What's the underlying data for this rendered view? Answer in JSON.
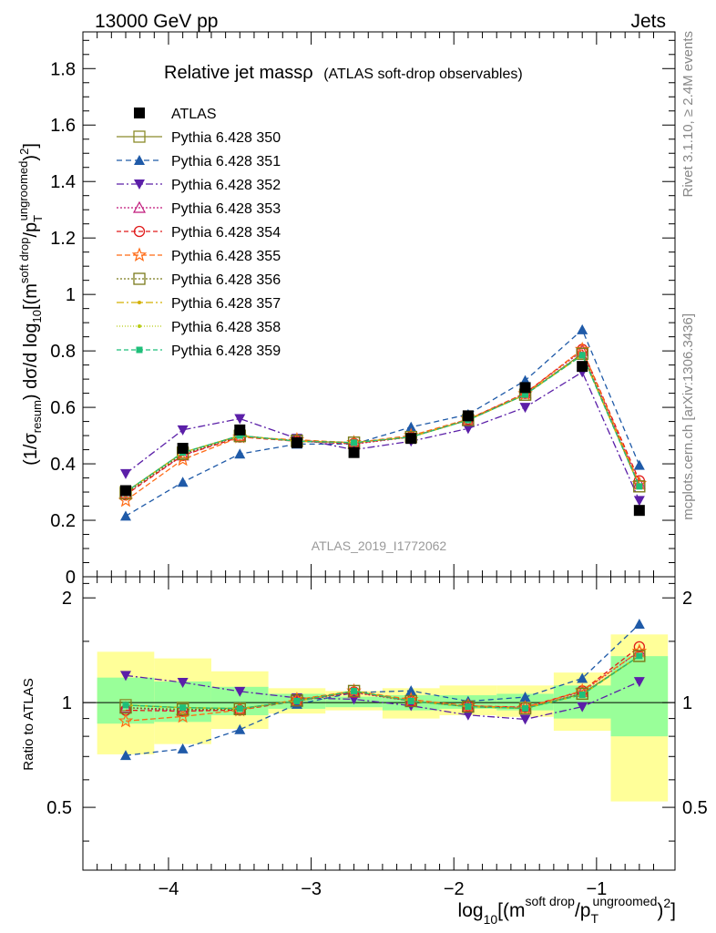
{
  "header": {
    "left": "13000 GeV pp",
    "right": "Jets",
    "analysis": "ATLAS_2019_I1772062",
    "side_top": "Rivet 3.1.10, ≥ 2.4M events",
    "side_bottom": "mcplots.cern.ch [arXiv:1306.3436]"
  },
  "chart_data": {
    "type": "line",
    "title": "Relative jet massρ",
    "subtitle": "(ATLAS soft-drop observables)",
    "xlabel": "log10[(m^{soft drop}/p_T^{ungroomed})^2]",
    "ylabel_main": "(1/σ_resum) dσ/d log10[(m^{soft drop}/p_T^{ungroomed})^2]",
    "ylabel_ratio": "Ratio to ATLAS",
    "xlim": [
      -4.6,
      -0.45
    ],
    "ylim": [
      0,
      1.93
    ],
    "ratio_ylim": [
      0.33,
      2.3
    ],
    "ratio_yscale": "log",
    "grid": false,
    "legend_position": "top-left",
    "x_ticks": [
      "−4",
      "−3",
      "−2",
      "−1"
    ],
    "x_tick_values": [
      -4,
      -3,
      -2,
      -1
    ],
    "y_ticks": [
      "0",
      "0.2",
      "0.4",
      "0.6",
      "0.8",
      "1",
      "1.2",
      "1.4",
      "1.6",
      "1.8"
    ],
    "y_tick_values": [
      0,
      0.2,
      0.4,
      0.6,
      0.8,
      1,
      1.2,
      1.4,
      1.6,
      1.8
    ],
    "ratio_ticks": [
      "0.5",
      "1",
      "2"
    ],
    "ratio_tick_values": [
      0.5,
      1,
      2
    ],
    "x": [
      -4.3,
      -3.9,
      -3.5,
      -3.1,
      -2.7,
      -2.3,
      -1.9,
      -1.5,
      -1.1,
      -0.7
    ],
    "bin_edges": [
      -4.5,
      -4.1,
      -3.7,
      -3.3,
      -2.9,
      -2.5,
      -2.1,
      -1.7,
      -1.3,
      -0.9,
      -0.5
    ],
    "data": {
      "name": "ATLAS",
      "values": [
        0.305,
        0.455,
        0.52,
        0.475,
        0.44,
        0.49,
        0.57,
        0.67,
        0.745,
        0.235
      ]
    },
    "band_outer": [
      [
        0.71,
        1.4
      ],
      [
        0.76,
        1.34
      ],
      [
        0.84,
        1.23
      ],
      [
        0.93,
        1.1
      ],
      [
        0.95,
        1.08
      ],
      [
        0.9,
        1.1
      ],
      [
        0.92,
        1.12
      ],
      [
        0.91,
        1.12
      ],
      [
        0.83,
        1.22
      ],
      [
        0.52,
        1.57
      ]
    ],
    "band_inner": [
      [
        0.87,
        1.18
      ],
      [
        0.88,
        1.15
      ],
      [
        0.92,
        1.11
      ],
      [
        0.96,
        1.06
      ],
      [
        0.97,
        1.04
      ],
      [
        0.95,
        1.05
      ],
      [
        0.96,
        1.05
      ],
      [
        0.95,
        1.06
      ],
      [
        0.9,
        1.12
      ],
      [
        0.8,
        1.36
      ]
    ],
    "series": [
      {
        "name": "Pythia 6.428 350",
        "color": "#8b8b2a",
        "marker": "square-open",
        "dash": "",
        "values": [
          0.3,
          0.44,
          0.5,
          0.48,
          0.475,
          0.495,
          0.555,
          0.645,
          0.79,
          0.32
        ]
      },
      {
        "name": "Pythia 6.428 351",
        "color": "#1f5aa8",
        "marker": "triangle-up",
        "dash": "6,4",
        "values": [
          0.215,
          0.335,
          0.435,
          0.47,
          0.47,
          0.53,
          0.575,
          0.695,
          0.875,
          0.395
        ]
      },
      {
        "name": "Pythia 6.428 352",
        "color": "#5b1fa8",
        "marker": "triangle-down",
        "dash": "8,3,2,3",
        "values": [
          0.365,
          0.52,
          0.56,
          0.49,
          0.45,
          0.48,
          0.525,
          0.6,
          0.725,
          0.27
        ]
      },
      {
        "name": "Pythia 6.428 353",
        "color": "#c0187a",
        "marker": "triangle-open",
        "dash": "2,2",
        "values": [
          0.295,
          0.43,
          0.5,
          0.48,
          0.47,
          0.495,
          0.555,
          0.65,
          0.8,
          0.33
        ]
      },
      {
        "name": "Pythia 6.428 354",
        "color": "#e01a1a",
        "marker": "circle-open",
        "dash": "5,3",
        "values": [
          0.29,
          0.43,
          0.495,
          0.48,
          0.472,
          0.495,
          0.558,
          0.65,
          0.805,
          0.34
        ]
      },
      {
        "name": "Pythia 6.428 355",
        "color": "#ff6a14",
        "marker": "star-open",
        "dash": "6,3",
        "values": [
          0.27,
          0.415,
          0.495,
          0.485,
          0.475,
          0.5,
          0.558,
          0.648,
          0.805,
          0.33
        ]
      },
      {
        "name": "Pythia 6.428 356",
        "color": "#7a7a1a",
        "marker": "square-open",
        "dash": "2,2",
        "values": [
          0.295,
          0.435,
          0.498,
          0.482,
          0.475,
          0.495,
          0.555,
          0.645,
          0.79,
          0.32
        ]
      },
      {
        "name": "Pythia 6.428 357",
        "color": "#d4b000",
        "marker": "dot",
        "dash": "8,3,2,3",
        "values": [
          0.3,
          0.44,
          0.5,
          0.48,
          0.475,
          0.495,
          0.555,
          0.645,
          0.785,
          0.32
        ]
      },
      {
        "name": "Pythia 6.428 358",
        "color": "#b8cc14",
        "marker": "dot",
        "dash": "1,2",
        "values": [
          0.3,
          0.44,
          0.5,
          0.48,
          0.475,
          0.495,
          0.555,
          0.645,
          0.785,
          0.32
        ]
      },
      {
        "name": "Pythia 6.428 359",
        "color": "#1fbf7a",
        "marker": "square-filled",
        "dash": "5,3",
        "values": [
          0.3,
          0.44,
          0.5,
          0.48,
          0.475,
          0.495,
          0.555,
          0.645,
          0.785,
          0.32
        ]
      }
    ]
  }
}
